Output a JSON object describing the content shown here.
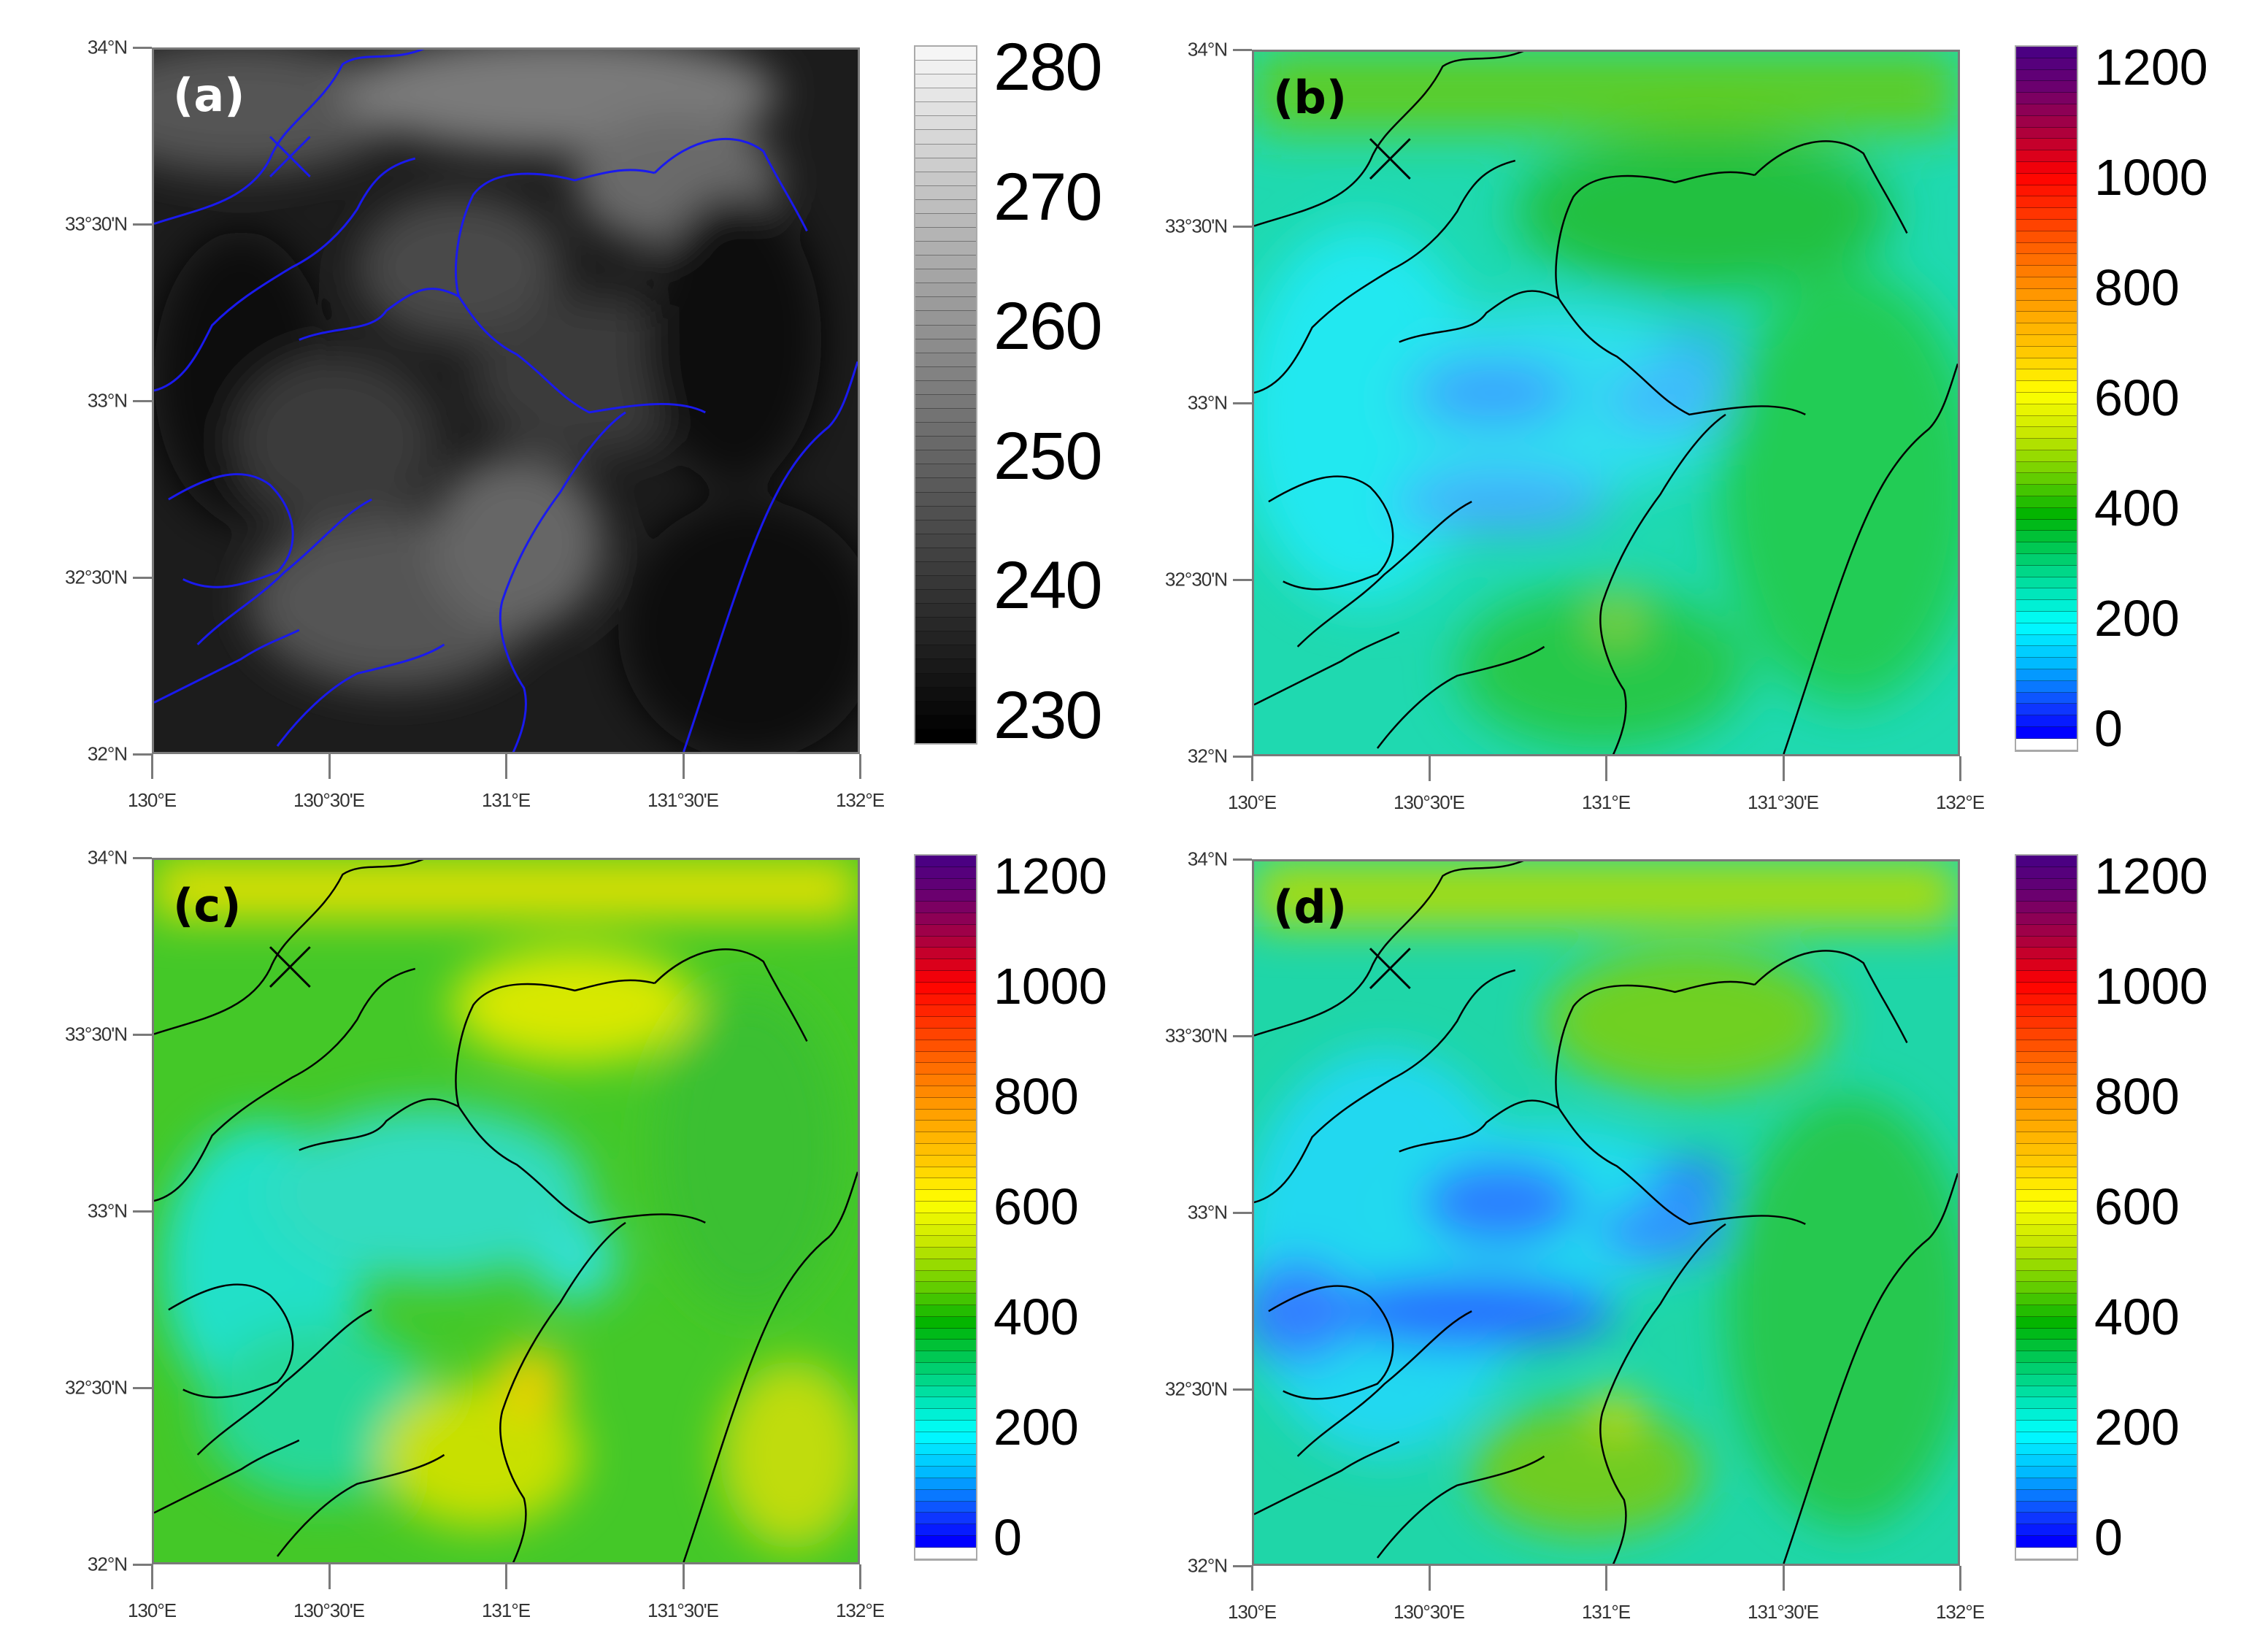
{
  "figure": {
    "panels": [
      {
        "id": "a",
        "label": "(a)",
        "field": "brightness_temperature",
        "coastline_color": "#1010e0",
        "label_color": "#ffffff"
      },
      {
        "id": "b",
        "label": "(b)",
        "field": "value_b",
        "coastline_color": "#000000",
        "label_color": "#000000"
      },
      {
        "id": "c",
        "label": "(c)",
        "field": "value_c",
        "coastline_color": "#000000",
        "label_color": "#000000"
      },
      {
        "id": "d",
        "label": "(d)",
        "field": "value_d",
        "coastline_color": "#000000",
        "label_color": "#000000"
      }
    ],
    "y_ticks": [
      "34°N",
      "33°30'N",
      "33°N",
      "32°30'N",
      "32°N"
    ],
    "x_ticks": [
      "130°E",
      "130°30'E",
      "131°E",
      "131°30'E",
      "132°E"
    ],
    "colorbar_gray": {
      "ticks": [
        "280",
        "270",
        "260",
        "250",
        "240",
        "230"
      ],
      "min": 230,
      "max": 280
    },
    "colorbar_rainbow": {
      "ticks": [
        "1200",
        "1000",
        "800",
        "600",
        "400",
        "200",
        "0"
      ],
      "min": 0,
      "max": 1200
    }
  },
  "chart_data": [
    {
      "type": "heatmap",
      "title": "(a)",
      "xlabel": "",
      "ylabel": "",
      "x_range": [
        130.0,
        132.0
      ],
      "y_range": [
        32.0,
        34.0
      ],
      "x_tick_labels": [
        "130°E",
        "130°30'E",
        "131°E",
        "131°30'E",
        "132°E"
      ],
      "y_tick_labels": [
        "32°N",
        "32°30'N",
        "33°N",
        "33°30'N",
        "34°N"
      ],
      "colormap": "grayscale",
      "colorbar": {
        "min": 230,
        "max": 280,
        "ticks": [
          230,
          240,
          250,
          260,
          270,
          280
        ],
        "levels": 50
      },
      "description": "Mostly dark field (~232-245), brighter patches (~250-262) near 33.4°N 131.1°E, 32.4°N 131.0°E and along top edge; coastlines in blue; X marker near 130.7°E 33.55°N",
      "grid": false
    },
    {
      "type": "heatmap",
      "title": "(b)",
      "x_range": [
        130.0,
        132.0
      ],
      "y_range": [
        32.0,
        34.0
      ],
      "x_tick_labels": [
        "130°E",
        "130°30'E",
        "131°E",
        "131°30'E",
        "132°E"
      ],
      "y_tick_labels": [
        "32°N",
        "32°30'N",
        "33°N",
        "33°30'N",
        "34°N"
      ],
      "colormap": "rainbow",
      "colorbar": {
        "min": 0,
        "max": 1200,
        "ticks": [
          0,
          200,
          400,
          600,
          800,
          1000,
          1200
        ],
        "levels": 60
      },
      "description": "Values ~150-250 (cyan) over western/central area, ~100-150 (light blue) patches near 32.8-33.1°N 130.7-131.4°E, ~350-450 (green) in north and southeast, local ~550 near 32.4°N 131.0°E",
      "grid": false
    },
    {
      "type": "heatmap",
      "title": "(c)",
      "x_range": [
        130.0,
        132.0
      ],
      "y_range": [
        32.0,
        34.0
      ],
      "x_tick_labels": [
        "130°E",
        "130°30'E",
        "131°E",
        "131°30'E",
        "132°E"
      ],
      "y_tick_labels": [
        "32°N",
        "32°30'N",
        "33°N",
        "33°30'N",
        "34°N"
      ],
      "colormap": "rainbow",
      "colorbar": {
        "min": 0,
        "max": 1200,
        "ticks": [
          0,
          200,
          400,
          600,
          800,
          1000,
          1200
        ],
        "levels": 60
      },
      "description": "Mostly green ~350-450, cyan ~220-280 in central/west, yellow ~550-650 along north edge, near 33.5°N 131.3°E, and around 32.2-32.4°N 130.9-131.0°E",
      "grid": false
    },
    {
      "type": "heatmap",
      "title": "(d)",
      "x_range": [
        130.0,
        132.0
      ],
      "y_range": [
        32.0,
        34.0
      ],
      "x_tick_labels": [
        "130°E",
        "130°30'E",
        "131°E",
        "131°30'E",
        "132°E"
      ],
      "y_tick_labels": [
        "32°N",
        "32°30'N",
        "33°N",
        "33°30'N",
        "34°N"
      ],
      "colormap": "rainbow",
      "colorbar": {
        "min": 0,
        "max": 1200,
        "ticks": [
          0,
          200,
          400,
          600,
          800,
          1000,
          1200
        ],
        "levels": 60
      },
      "description": "Similar to (b) with stronger blue ~80-150 band from 130.0°E to 131.4°E at 32.7-33.0°N, green/yellow ~450-550 near north edge, 33.5°N 131.3°E and 32.4°N 131.0°E",
      "grid": false
    }
  ]
}
